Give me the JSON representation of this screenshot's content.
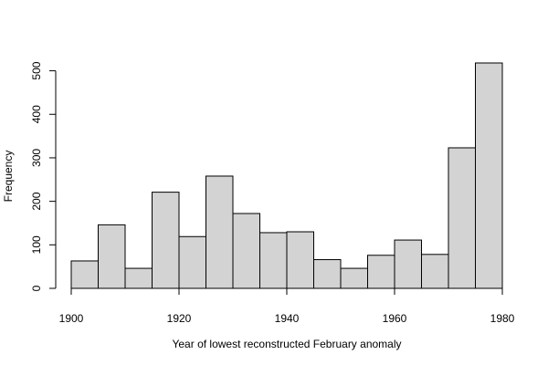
{
  "chart_data": {
    "type": "bar",
    "subtype": "histogram",
    "title": "",
    "xlabel": "Year of lowest reconstructed February anomaly",
    "ylabel": "Frequency",
    "bin_edges": [
      1900,
      1905,
      1910,
      1915,
      1920,
      1925,
      1930,
      1935,
      1940,
      1945,
      1950,
      1955,
      1960,
      1965,
      1970,
      1975,
      1980
    ],
    "values": [
      63,
      146,
      46,
      221,
      119,
      258,
      172,
      128,
      130,
      66,
      46,
      76,
      111,
      78,
      323,
      518
    ],
    "xlim": [
      1900,
      1980
    ],
    "ylim": [
      0,
      518
    ],
    "x_ticks": [
      1900,
      1920,
      1940,
      1960,
      1980
    ],
    "y_ticks": [
      0,
      100,
      200,
      300,
      400,
      500
    ],
    "bar_fill": "#d3d3d3",
    "bar_stroke": "#000000",
    "grid": false,
    "legend": "none"
  }
}
